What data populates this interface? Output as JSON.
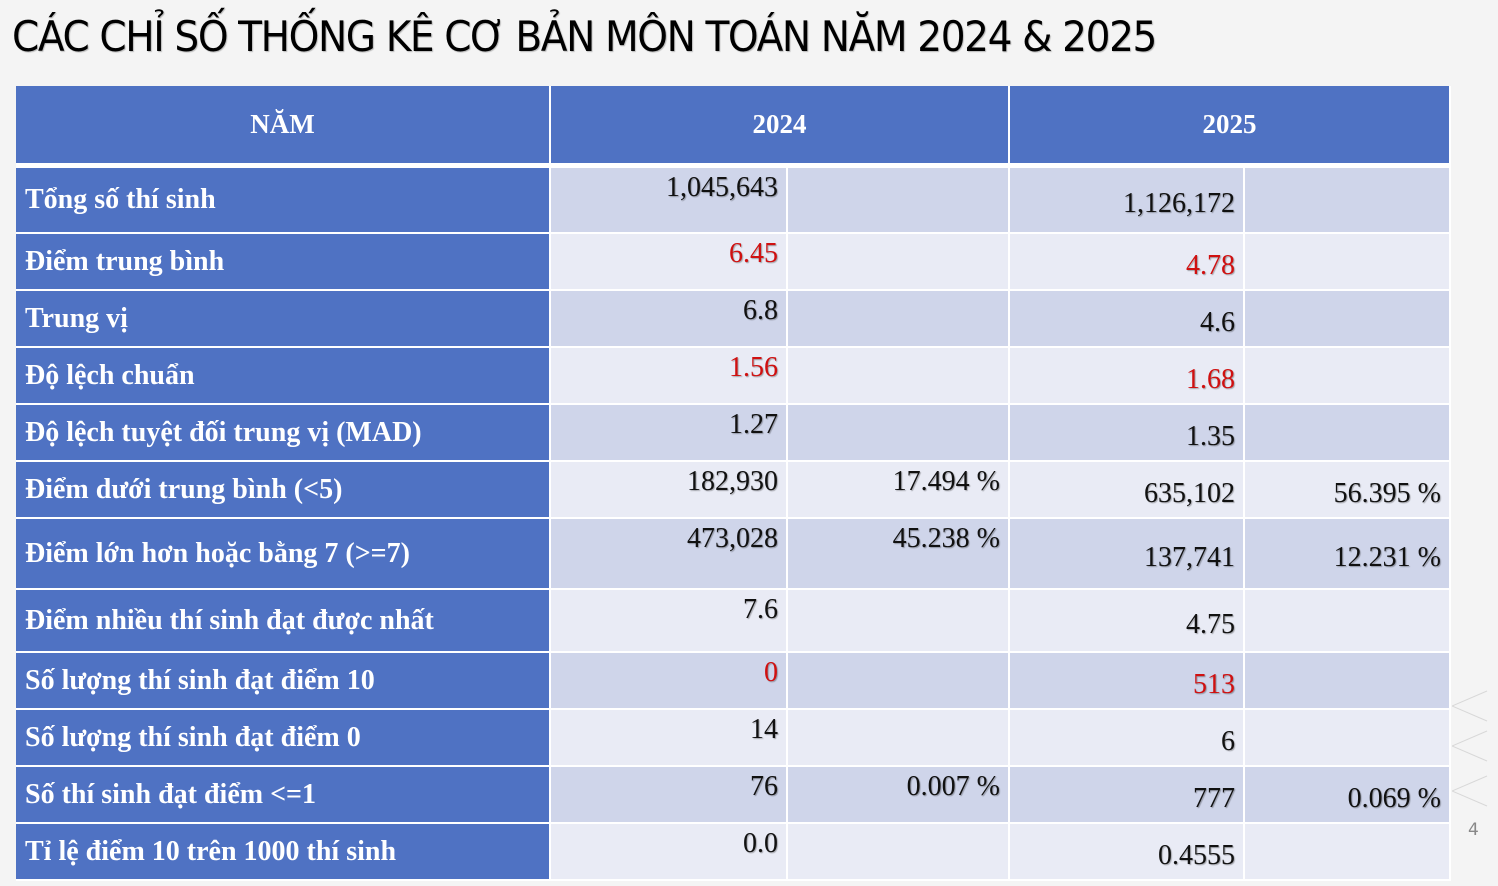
{
  "title": "CÁC CHỈ SỐ THỐNG KÊ CƠ BẢN MÔN TOÁN NĂM 2024 & 2025",
  "header": {
    "col_label": "NĂM",
    "year1": "2024",
    "year2": "2025"
  },
  "colors": {
    "header_bg": "#4f72c3",
    "row_odd": "#cfd5ea",
    "row_even": "#e9ebf5",
    "highlight": "#d01010"
  },
  "rows": [
    {
      "label": "Tổng số thí sinh",
      "v2024": "1,045,643",
      "p2024": "",
      "v2025": "1,126,172",
      "p2025": "",
      "highlight": false
    },
    {
      "label": "Điểm trung bình",
      "v2024": "6.45",
      "p2024": "",
      "v2025": "4.78",
      "p2025": "",
      "highlight": true
    },
    {
      "label": "Trung vị",
      "v2024": "6.8",
      "p2024": "",
      "v2025": "4.6",
      "p2025": "",
      "highlight": false
    },
    {
      "label": "Độ lệch chuẩn",
      "v2024": "1.56",
      "p2024": "",
      "v2025": "1.68",
      "p2025": "",
      "highlight": true
    },
    {
      "label": "Độ lệch tuyệt đối trung vị (MAD)",
      "v2024": "1.27",
      "p2024": "",
      "v2025": "1.35",
      "p2025": "",
      "highlight": false
    },
    {
      "label": "Điểm dưới trung bình (<5)",
      "v2024": "182,930",
      "p2024": "17.494 %",
      "v2025": "635,102",
      "p2025": "56.395 %",
      "highlight": false
    },
    {
      "label": "Điểm lớn hơn hoặc bằng 7 (>=7)",
      "v2024": "473,028",
      "p2024": "45.238 %",
      "v2025": "137,741",
      "p2025": "12.231 %",
      "highlight": false
    },
    {
      "label": "Điểm nhiều thí sinh đạt được nhất",
      "v2024": "7.6",
      "p2024": "",
      "v2025": "4.75",
      "p2025": "",
      "highlight": false
    },
    {
      "label": "Số lượng thí sinh đạt điểm 10",
      "v2024": "0",
      "p2024": "",
      "v2025": "513",
      "p2025": "",
      "highlight": true
    },
    {
      "label": "Số lượng thí sinh đạt điểm 0",
      "v2024": "14",
      "p2024": "",
      "v2025": "6",
      "p2025": "",
      "highlight": false
    },
    {
      "label": "Số thí sinh đạt điểm <=1",
      "v2024": "76",
      "p2024": "0.007 %",
      "v2025": "777",
      "p2025": "0.069 %",
      "highlight": false
    },
    {
      "label": "Tỉ lệ điểm 10 trên 1000 thí sinh",
      "v2024": "0.0",
      "p2024": "",
      "v2025": "0.4555",
      "p2025": "",
      "highlight": false
    }
  ],
  "page_number": "4"
}
